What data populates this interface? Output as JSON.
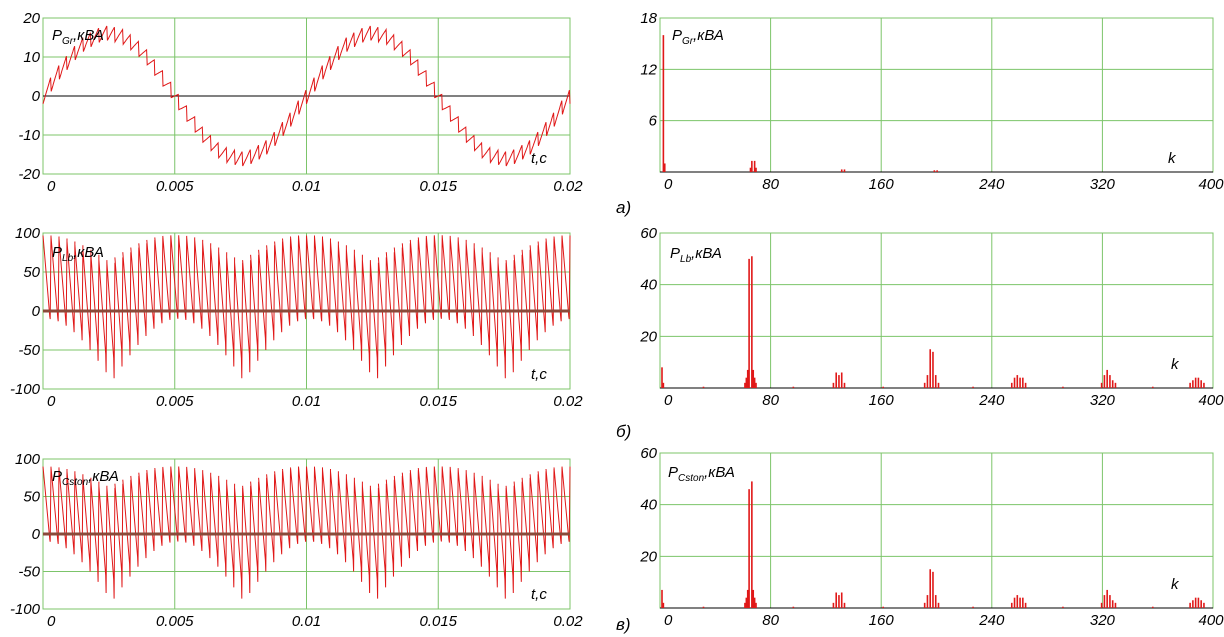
{
  "panels": [
    {
      "letter": "а)",
      "letter_y": 213
    },
    {
      "letter": "б)",
      "letter_y": 437
    },
    {
      "letter": "в)",
      "letter_y": 630
    }
  ],
  "chart_data": [
    {
      "id": "time-a",
      "type": "line",
      "label_main": "P",
      "label_sub": "Gr",
      "label_unit": ",кВА",
      "xlabel": "t,c",
      "xlim": [
        0,
        0.02
      ],
      "ylim": [
        -20,
        20
      ],
      "xticks": [
        "0",
        "0.005",
        "0.01",
        "0.015",
        "0.02"
      ],
      "xtick_values": [
        0,
        0.005,
        0.01,
        0.015,
        0.02
      ],
      "yticks": [
        "20",
        "10",
        "0",
        "-10",
        "-20"
      ],
      "ytick_values": [
        20,
        10,
        0,
        -10,
        -20
      ],
      "signal": {
        "kind": "sine",
        "amplitude": 16,
        "frequency_hz": 100,
        "ripple_amplitude": 2,
        "ripple_cycles": 66
      }
    },
    {
      "id": "time-b",
      "type": "line",
      "label_main": "P",
      "label_sub": "Lb",
      "label_unit": ",кВА",
      "xlabel": "t,c",
      "xlim": [
        0,
        0.02
      ],
      "ylim": [
        -100,
        100
      ],
      "xticks": [
        "0",
        "0.005",
        "0.01",
        "0.015",
        "0.02"
      ],
      "xtick_values": [
        0,
        0.005,
        0.01,
        0.015,
        0.02
      ],
      "yticks": [
        "100",
        "50",
        "0",
        "-50",
        "-100"
      ],
      "ytick_values": [
        100,
        50,
        0,
        -50,
        -100
      ],
      "signal": {
        "kind": "modulated",
        "peak": 97,
        "pulses": 66
      }
    },
    {
      "id": "time-c",
      "type": "line",
      "label_main": "P",
      "label_sub": "Cston",
      "label_unit": ",кВА",
      "xlabel": "t,c",
      "xlim": [
        0,
        0.02
      ],
      "ylim": [
        -100,
        100
      ],
      "xticks": [
        "0",
        "0.005",
        "0.01",
        "0.015",
        "0.02"
      ],
      "xtick_values": [
        0,
        0.005,
        0.01,
        0.015,
        0.02
      ],
      "yticks": [
        "100",
        "50",
        "0",
        "-50",
        "-100"
      ],
      "ytick_values": [
        100,
        50,
        0,
        -50,
        -100
      ],
      "signal": {
        "kind": "modulated",
        "peak": 90,
        "pulses": 66
      }
    },
    {
      "id": "spectrum-a",
      "type": "bar",
      "label_main": "P",
      "label_sub": "Gr",
      "label_unit": ",кВА",
      "xlabel": "k",
      "xlim": [
        0,
        400
      ],
      "ylim": [
        0,
        18
      ],
      "xticks": [
        "0",
        "80",
        "160",
        "240",
        "320",
        "400"
      ],
      "xtick_values": [
        0,
        80,
        160,
        240,
        320,
        400
      ],
      "yticks": [
        "18",
        "12",
        "6"
      ],
      "ytick_values": [
        18,
        12,
        6
      ],
      "bars": [
        {
          "k": 1,
          "v": 16
        },
        {
          "k": 2,
          "v": 1.0
        },
        {
          "k": 65,
          "v": 1.3
        },
        {
          "k": 67,
          "v": 1.3
        },
        {
          "k": 64,
          "v": 0.5
        },
        {
          "k": 68,
          "v": 0.5
        },
        {
          "k": 130,
          "v": 0.3
        },
        {
          "k": 132,
          "v": 0.3
        },
        {
          "k": 197,
          "v": 0.2
        },
        {
          "k": 199,
          "v": 0.2
        }
      ]
    },
    {
      "id": "spectrum-b",
      "type": "bar",
      "label_main": "P",
      "label_sub": "Lb",
      "label_unit": ",кВА",
      "xlabel": "k",
      "xlim": [
        0,
        400
      ],
      "ylim": [
        0,
        60
      ],
      "xticks": [
        "0",
        "80",
        "160",
        "240",
        "320",
        "400"
      ],
      "xtick_values": [
        0,
        80,
        160,
        240,
        320,
        400
      ],
      "yticks": [
        "60",
        "40",
        "20"
      ],
      "ytick_values": [
        60,
        40,
        20
      ],
      "bars": [
        {
          "k": 0,
          "v": 8
        },
        {
          "k": 1,
          "v": 2
        },
        {
          "k": 60,
          "v": 2
        },
        {
          "k": 61,
          "v": 4
        },
        {
          "k": 62,
          "v": 7
        },
        {
          "k": 63,
          "v": 50
        },
        {
          "k": 65,
          "v": 51
        },
        {
          "k": 66,
          "v": 7
        },
        {
          "k": 67,
          "v": 4
        },
        {
          "k": 68,
          "v": 2
        },
        {
          "k": 124,
          "v": 2
        },
        {
          "k": 126,
          "v": 6
        },
        {
          "k": 128,
          "v": 5
        },
        {
          "k": 130,
          "v": 6
        },
        {
          "k": 132,
          "v": 2
        },
        {
          "k": 190,
          "v": 2
        },
        {
          "k": 192,
          "v": 5
        },
        {
          "k": 194,
          "v": 15
        },
        {
          "k": 196,
          "v": 14
        },
        {
          "k": 198,
          "v": 5
        },
        {
          "k": 200,
          "v": 2
        },
        {
          "k": 253,
          "v": 2
        },
        {
          "k": 255,
          "v": 4
        },
        {
          "k": 257,
          "v": 5
        },
        {
          "k": 259,
          "v": 4
        },
        {
          "k": 261,
          "v": 4
        },
        {
          "k": 263,
          "v": 2
        },
        {
          "k": 318,
          "v": 2
        },
        {
          "k": 320,
          "v": 5
        },
        {
          "k": 322,
          "v": 7
        },
        {
          "k": 324,
          "v": 5
        },
        {
          "k": 326,
          "v": 3
        },
        {
          "k": 328,
          "v": 2
        },
        {
          "k": 382,
          "v": 2
        },
        {
          "k": 384,
          "v": 3
        },
        {
          "k": 386,
          "v": 4
        },
        {
          "k": 388,
          "v": 4
        },
        {
          "k": 390,
          "v": 3
        },
        {
          "k": 392,
          "v": 2
        },
        {
          "k": 30,
          "v": 0.5
        },
        {
          "k": 95,
          "v": 0.5
        },
        {
          "k": 160,
          "v": 0.5
        },
        {
          "k": 225,
          "v": 0.5
        },
        {
          "k": 290,
          "v": 0.5
        },
        {
          "k": 355,
          "v": 0.5
        }
      ]
    },
    {
      "id": "spectrum-c",
      "type": "bar",
      "label_main": "P",
      "label_sub": "Cston",
      "label_unit": ",кВА",
      "xlabel": "k",
      "xlim": [
        0,
        400
      ],
      "ylim": [
        0,
        60
      ],
      "xticks": [
        "0",
        "80",
        "160",
        "240",
        "320",
        "400"
      ],
      "xtick_values": [
        0,
        80,
        160,
        240,
        320,
        400
      ],
      "yticks": [
        "60",
        "40",
        "20"
      ],
      "ytick_values": [
        60,
        40,
        20
      ],
      "bars": [
        {
          "k": 0,
          "v": 7
        },
        {
          "k": 1,
          "v": 2
        },
        {
          "k": 60,
          "v": 2
        },
        {
          "k": 61,
          "v": 4
        },
        {
          "k": 62,
          "v": 7
        },
        {
          "k": 63,
          "v": 46
        },
        {
          "k": 65,
          "v": 49
        },
        {
          "k": 66,
          "v": 7
        },
        {
          "k": 67,
          "v": 4
        },
        {
          "k": 68,
          "v": 2
        },
        {
          "k": 124,
          "v": 2
        },
        {
          "k": 126,
          "v": 6
        },
        {
          "k": 128,
          "v": 5
        },
        {
          "k": 130,
          "v": 6
        },
        {
          "k": 132,
          "v": 2
        },
        {
          "k": 190,
          "v": 2
        },
        {
          "k": 192,
          "v": 5
        },
        {
          "k": 194,
          "v": 15
        },
        {
          "k": 196,
          "v": 14
        },
        {
          "k": 198,
          "v": 5
        },
        {
          "k": 200,
          "v": 2
        },
        {
          "k": 253,
          "v": 2
        },
        {
          "k": 255,
          "v": 4
        },
        {
          "k": 257,
          "v": 5
        },
        {
          "k": 259,
          "v": 4
        },
        {
          "k": 261,
          "v": 4
        },
        {
          "k": 263,
          "v": 2
        },
        {
          "k": 318,
          "v": 2
        },
        {
          "k": 320,
          "v": 5
        },
        {
          "k": 322,
          "v": 7
        },
        {
          "k": 324,
          "v": 5
        },
        {
          "k": 326,
          "v": 3
        },
        {
          "k": 328,
          "v": 2
        },
        {
          "k": 382,
          "v": 2
        },
        {
          "k": 384,
          "v": 3
        },
        {
          "k": 386,
          "v": 4
        },
        {
          "k": 388,
          "v": 4
        },
        {
          "k": 390,
          "v": 3
        },
        {
          "k": 392,
          "v": 2
        },
        {
          "k": 30,
          "v": 0.5
        },
        {
          "k": 95,
          "v": 0.5
        },
        {
          "k": 160,
          "v": 0.5
        },
        {
          "k": 225,
          "v": 0.5
        },
        {
          "k": 290,
          "v": 0.5
        },
        {
          "k": 355,
          "v": 0.5
        }
      ]
    }
  ]
}
